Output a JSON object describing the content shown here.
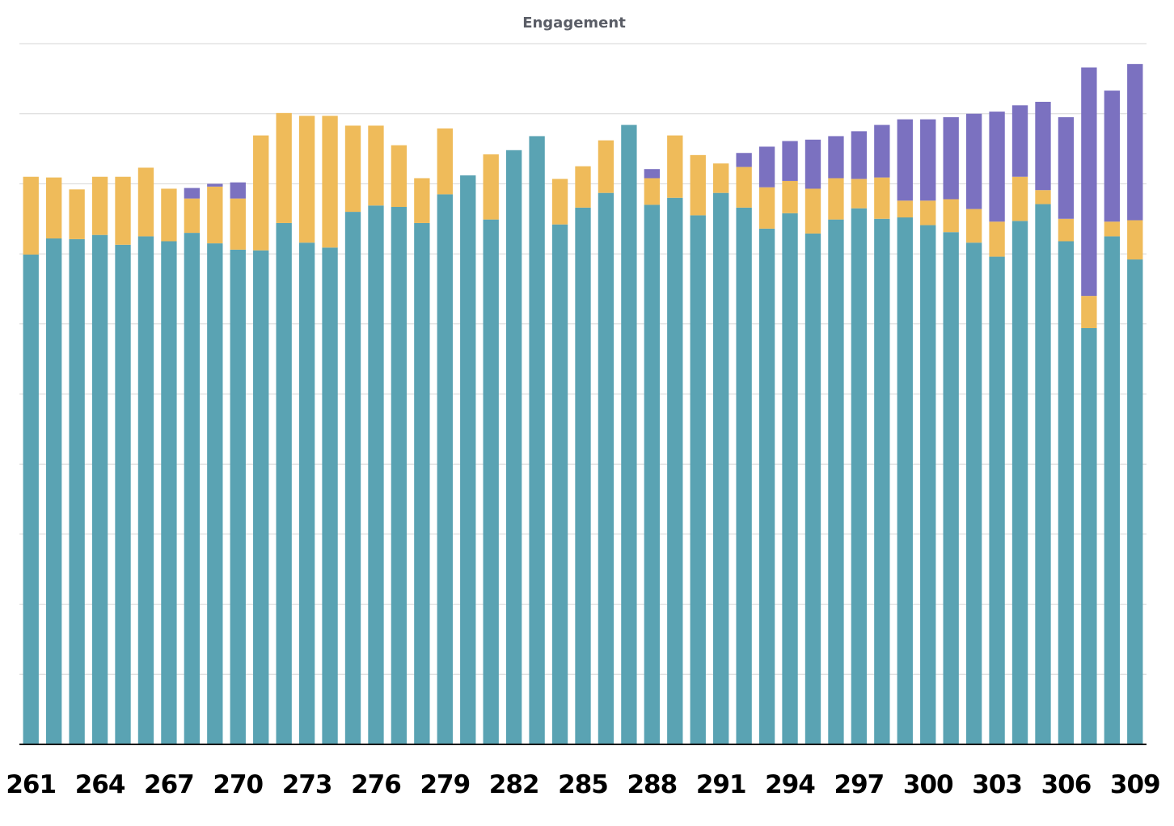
{
  "chart_data": {
    "type": "bar",
    "stacked": true,
    "title": "Engagement",
    "xlabel": "",
    "ylabel": "",
    "x_tick_labels": [
      "261",
      "264",
      "267",
      "270",
      "273",
      "276",
      "279",
      "282",
      "285",
      "288",
      "291",
      "294",
      "297",
      "300",
      "303",
      "306",
      "309"
    ],
    "categories": [
      "261",
      "262",
      "263",
      "264",
      "265",
      "266",
      "267",
      "268",
      "269",
      "270",
      "271",
      "272",
      "273",
      "274",
      "275",
      "276",
      "277",
      "278",
      "279",
      "280",
      "281",
      "282",
      "283",
      "284",
      "285",
      "286",
      "287",
      "288",
      "289",
      "290",
      "291",
      "292",
      "293",
      "294",
      "295",
      "296",
      "297",
      "298",
      "299",
      "300",
      "301",
      "302",
      "303",
      "304",
      "305",
      "306",
      "307",
      "308",
      "309"
    ],
    "ylim": [
      0,
      100
    ],
    "grid": true,
    "legend": "none",
    "series": [
      {
        "color": "#5aa3b3",
        "values": [
          69.9,
          72.2,
          72.1,
          72.7,
          71.3,
          72.5,
          71.8,
          73.0,
          71.5,
          70.6,
          70.5,
          74.4,
          71.6,
          70.9,
          76.0,
          76.9,
          76.7,
          74.4,
          78.5,
          81.2,
          74.9,
          84.8,
          86.8,
          74.2,
          76.6,
          78.7,
          88.4,
          77.0,
          78.0,
          75.5,
          78.7,
          76.6,
          73.6,
          75.8,
          72.9,
          74.9,
          76.5,
          75.0,
          75.2,
          74.1,
          73.1,
          71.6,
          69.6,
          74.7,
          77.1,
          71.8,
          59.4,
          72.5,
          69.2
        ]
      },
      {
        "color": "#efbb5a",
        "values": [
          11.1,
          8.7,
          7.1,
          8.3,
          9.7,
          9.8,
          7.5,
          4.9,
          8.1,
          7.3,
          16.4,
          15.7,
          18.1,
          18.8,
          12.3,
          11.4,
          8.8,
          6.4,
          9.4,
          0,
          9.3,
          0,
          0,
          6.5,
          5.9,
          7.5,
          0,
          3.8,
          8.9,
          8.6,
          4.2,
          5.8,
          5.9,
          4.6,
          6.4,
          5.9,
          4.2,
          5.9,
          2.4,
          3.5,
          4.7,
          4.8,
          5.0,
          6.3,
          2.0,
          3.2,
          4.6,
          2.1,
          5.6
        ]
      },
      {
        "color": "#7b71c0",
        "values": [
          0,
          0,
          0,
          0,
          0,
          0,
          0,
          1.5,
          0.4,
          2.3,
          0,
          0,
          0,
          0,
          0,
          0,
          0,
          0,
          0,
          0,
          0,
          0,
          0,
          0,
          0,
          0,
          0,
          1.3,
          0,
          0,
          0,
          2.0,
          5.8,
          5.7,
          7.0,
          6.0,
          6.8,
          7.5,
          11.6,
          11.6,
          11.7,
          13.6,
          15.7,
          10.2,
          12.6,
          14.5,
          32.6,
          18.7,
          22.3
        ]
      }
    ]
  }
}
